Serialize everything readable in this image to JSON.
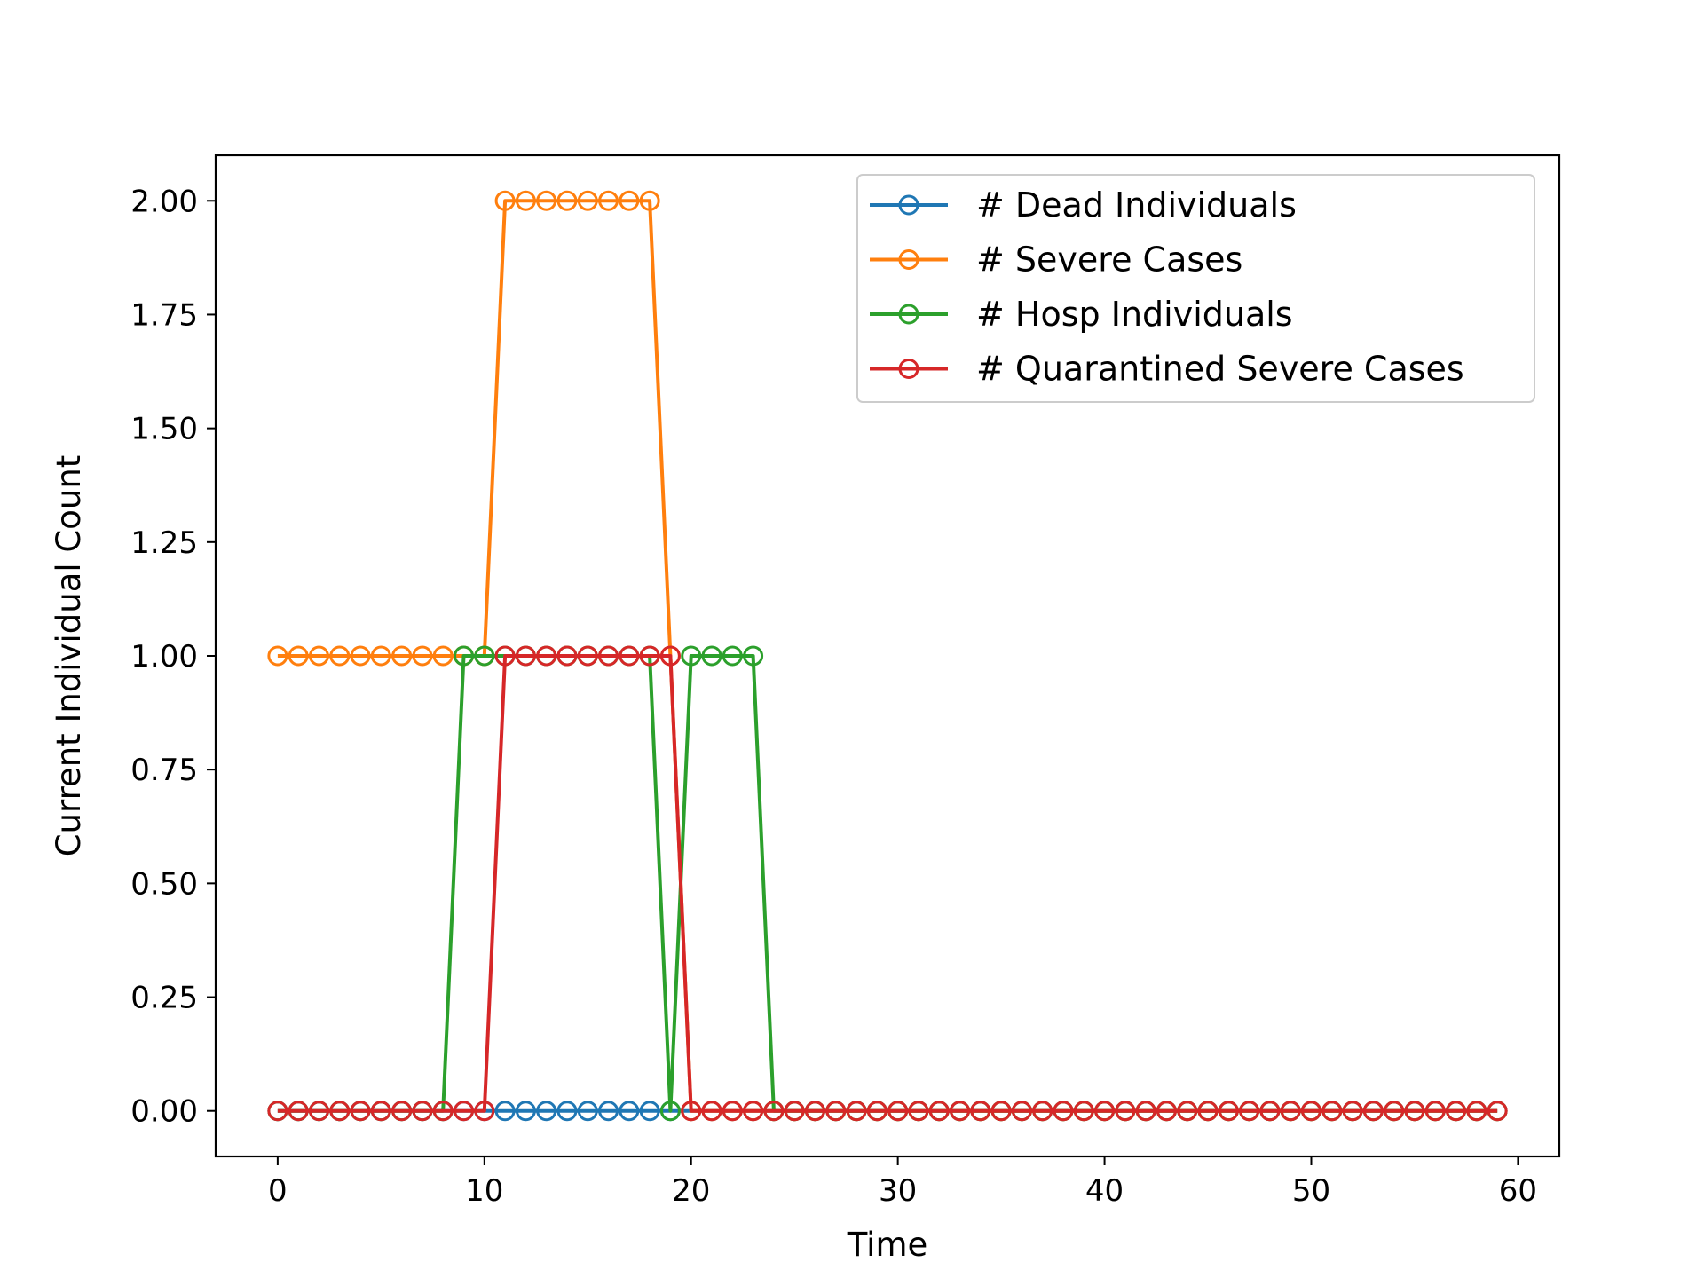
{
  "chart_data": {
    "type": "line",
    "title": "",
    "xlabel": "Time",
    "ylabel": "Current Individual Count",
    "xlim": [
      -3,
      62
    ],
    "ylim": [
      -0.1,
      2.1
    ],
    "xticks": [
      0,
      10,
      20,
      30,
      40,
      50,
      60
    ],
    "xtick_labels": [
      "0",
      "10",
      "20",
      "30",
      "40",
      "50",
      "60"
    ],
    "yticks": [
      0,
      0.25,
      0.5,
      0.75,
      1.0,
      1.25,
      1.5,
      1.75,
      2.0
    ],
    "ytick_labels": [
      "0.00",
      "0.25",
      "0.50",
      "0.75",
      "1.00",
      "1.25",
      "1.50",
      "1.75",
      "2.00"
    ],
    "grid": false,
    "legend_position": "top-right",
    "marker": "hollow-circle",
    "x": [
      0,
      1,
      2,
      3,
      4,
      5,
      6,
      7,
      8,
      9,
      10,
      11,
      12,
      13,
      14,
      15,
      16,
      17,
      18,
      19,
      20,
      21,
      22,
      23,
      24,
      25,
      26,
      27,
      28,
      29,
      30,
      31,
      32,
      33,
      34,
      35,
      36,
      37,
      38,
      39,
      40,
      41,
      42,
      43,
      44,
      45,
      46,
      47,
      48,
      49,
      50,
      51,
      52,
      53,
      54,
      55,
      56,
      57,
      58,
      59
    ],
    "series": [
      {
        "name": "# Dead Individuals",
        "color": "#1f77b4",
        "values": [
          0,
          0,
          0,
          0,
          0,
          0,
          0,
          0,
          0,
          0,
          0,
          0,
          0,
          0,
          0,
          0,
          0,
          0,
          0,
          0,
          0,
          0,
          0,
          0,
          0,
          0,
          0,
          0,
          0,
          0,
          0,
          0,
          0,
          0,
          0,
          0,
          0,
          0,
          0,
          0,
          0,
          0,
          0,
          0,
          0,
          0,
          0,
          0,
          0,
          0,
          0,
          0,
          0,
          0,
          0,
          0,
          0,
          0,
          0,
          0
        ]
      },
      {
        "name": "# Severe Cases",
        "color": "#ff7f0e",
        "values": [
          1,
          1,
          1,
          1,
          1,
          1,
          1,
          1,
          1,
          1,
          1,
          2,
          2,
          2,
          2,
          2,
          2,
          2,
          2,
          1,
          0,
          0,
          0,
          0,
          0,
          0,
          0,
          0,
          0,
          0,
          0,
          0,
          0,
          0,
          0,
          0,
          0,
          0,
          0,
          0,
          0,
          0,
          0,
          0,
          0,
          0,
          0,
          0,
          0,
          0,
          0,
          0,
          0,
          0,
          0,
          0,
          0,
          0,
          0,
          0
        ]
      },
      {
        "name": "# Hosp Individuals",
        "color": "#2ca02c",
        "values": [
          0,
          0,
          0,
          0,
          0,
          0,
          0,
          0,
          0,
          1,
          1,
          1,
          1,
          1,
          1,
          1,
          1,
          1,
          1,
          0,
          1,
          1,
          1,
          1,
          0,
          0,
          0,
          0,
          0,
          0,
          0,
          0,
          0,
          0,
          0,
          0,
          0,
          0,
          0,
          0,
          0,
          0,
          0,
          0,
          0,
          0,
          0,
          0,
          0,
          0,
          0,
          0,
          0,
          0,
          0,
          0,
          0,
          0,
          0,
          0
        ]
      },
      {
        "name": "# Quarantined Severe Cases",
        "color": "#d62728",
        "values": [
          0,
          0,
          0,
          0,
          0,
          0,
          0,
          0,
          0,
          0,
          0,
          1,
          1,
          1,
          1,
          1,
          1,
          1,
          1,
          1,
          0,
          0,
          0,
          0,
          0,
          0,
          0,
          0,
          0,
          0,
          0,
          0,
          0,
          0,
          0,
          0,
          0,
          0,
          0,
          0,
          0,
          0,
          0,
          0,
          0,
          0,
          0,
          0,
          0,
          0,
          0,
          0,
          0,
          0,
          0,
          0,
          0,
          0,
          0,
          0
        ]
      }
    ]
  }
}
